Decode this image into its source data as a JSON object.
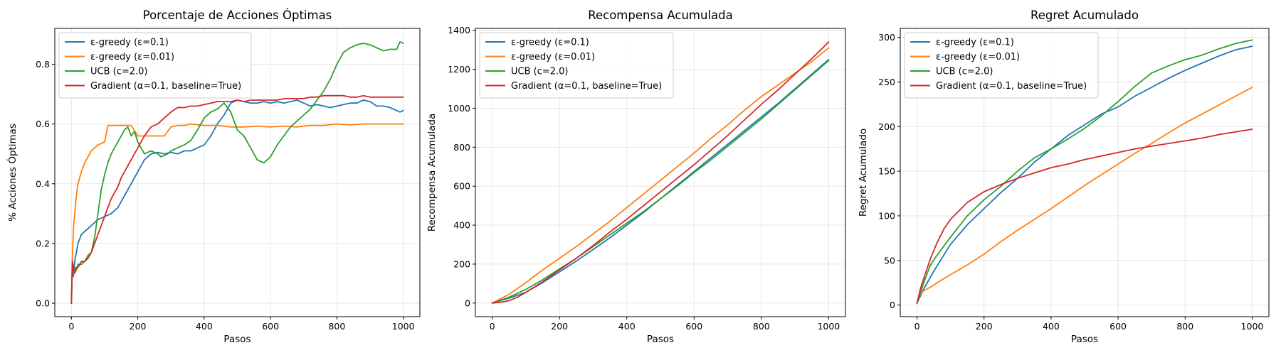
{
  "figure": {
    "colors": {
      "eps01": "#1f77b4",
      "eps001": "#ff7f0e",
      "ucb": "#2ca02c",
      "grad": "#d62728",
      "grid": "#e6e6e6",
      "axis": "#000000"
    }
  },
  "chart_data": [
    {
      "type": "line",
      "title": "Porcentaje de Acciones Óptimas",
      "xlabel": "Pasos",
      "ylabel": "% Acciones Óptimas",
      "xlim": [
        -50,
        1050
      ],
      "ylim": [
        -0.045,
        0.92
      ],
      "xticks": [
        0,
        200,
        400,
        600,
        800,
        1000
      ],
      "yticks": [
        0.0,
        0.2,
        0.4,
        0.6,
        0.8
      ],
      "ytick_labels": [
        "0.0",
        "0.2",
        "0.4",
        "0.6",
        "0.8"
      ],
      "grid": true,
      "legend": "top-left",
      "series": [
        {
          "name": "ε-greedy (ε=0.1)",
          "color_key": "eps01",
          "x": [
            0,
            3,
            6,
            10,
            15,
            20,
            30,
            40,
            50,
            60,
            80,
            100,
            120,
            140,
            160,
            180,
            200,
            220,
            240,
            260,
            280,
            300,
            320,
            340,
            360,
            380,
            400,
            420,
            440,
            460,
            480,
            500,
            520,
            540,
            560,
            580,
            600,
            620,
            640,
            660,
            680,
            700,
            720,
            740,
            760,
            780,
            800,
            820,
            840,
            860,
            880,
            900,
            920,
            940,
            960,
            980,
            990,
            1000
          ],
          "y": [
            0.0,
            0.12,
            0.09,
            0.14,
            0.17,
            0.2,
            0.23,
            0.24,
            0.25,
            0.26,
            0.28,
            0.29,
            0.3,
            0.32,
            0.36,
            0.4,
            0.44,
            0.48,
            0.5,
            0.505,
            0.5,
            0.505,
            0.5,
            0.51,
            0.51,
            0.52,
            0.53,
            0.56,
            0.6,
            0.63,
            0.67,
            0.68,
            0.675,
            0.67,
            0.67,
            0.675,
            0.67,
            0.675,
            0.67,
            0.675,
            0.68,
            0.67,
            0.66,
            0.665,
            0.66,
            0.655,
            0.66,
            0.665,
            0.67,
            0.67,
            0.68,
            0.675,
            0.66,
            0.66,
            0.655,
            0.645,
            0.64,
            0.645
          ]
        },
        {
          "name": "ε-greedy (ε=0.01)",
          "color_key": "eps001",
          "x": [
            0,
            3,
            6,
            10,
            15,
            20,
            30,
            40,
            50,
            60,
            70,
            80,
            90,
            100,
            110,
            120,
            140,
            160,
            180,
            200,
            220,
            240,
            260,
            280,
            300,
            320,
            340,
            360,
            400,
            440,
            480,
            520,
            560,
            600,
            640,
            680,
            720,
            760,
            800,
            840,
            880,
            920,
            960,
            1000
          ],
          "y": [
            0.0,
            0.15,
            0.25,
            0.3,
            0.36,
            0.4,
            0.44,
            0.47,
            0.49,
            0.51,
            0.52,
            0.53,
            0.535,
            0.54,
            0.595,
            0.595,
            0.595,
            0.595,
            0.595,
            0.56,
            0.56,
            0.56,
            0.56,
            0.56,
            0.59,
            0.595,
            0.595,
            0.6,
            0.595,
            0.595,
            0.59,
            0.59,
            0.593,
            0.59,
            0.593,
            0.59,
            0.595,
            0.595,
            0.6,
            0.597,
            0.6,
            0.6,
            0.6,
            0.6
          ]
        },
        {
          "name": "UCB (c=2.0)",
          "color_key": "ucb",
          "x": [
            0,
            3,
            6,
            10,
            15,
            20,
            30,
            40,
            50,
            60,
            70,
            80,
            90,
            100,
            110,
            120,
            130,
            140,
            150,
            160,
            170,
            180,
            190,
            200,
            210,
            220,
            230,
            240,
            250,
            260,
            270,
            280,
            290,
            300,
            320,
            340,
            360,
            380,
            400,
            420,
            440,
            460,
            480,
            500,
            520,
            540,
            560,
            580,
            600,
            620,
            640,
            660,
            680,
            700,
            720,
            740,
            760,
            780,
            800,
            820,
            840,
            860,
            880,
            900,
            920,
            940,
            960,
            980,
            990,
            1000
          ],
          "y": [
            0.0,
            0.13,
            0.1,
            0.12,
            0.11,
            0.13,
            0.13,
            0.14,
            0.16,
            0.17,
            0.22,
            0.3,
            0.38,
            0.43,
            0.47,
            0.5,
            0.52,
            0.54,
            0.56,
            0.58,
            0.59,
            0.56,
            0.575,
            0.54,
            0.52,
            0.5,
            0.505,
            0.51,
            0.505,
            0.5,
            0.49,
            0.495,
            0.5,
            0.51,
            0.52,
            0.53,
            0.545,
            0.58,
            0.62,
            0.64,
            0.65,
            0.67,
            0.64,
            0.58,
            0.56,
            0.52,
            0.48,
            0.47,
            0.49,
            0.53,
            0.56,
            0.59,
            0.61,
            0.63,
            0.65,
            0.68,
            0.71,
            0.75,
            0.8,
            0.84,
            0.855,
            0.865,
            0.87,
            0.865,
            0.855,
            0.845,
            0.85,
            0.85,
            0.875,
            0.87
          ]
        },
        {
          "name": "Gradient (α=0.1, baseline=True)",
          "color_key": "grad",
          "x": [
            0,
            3,
            6,
            10,
            15,
            20,
            30,
            40,
            50,
            60,
            70,
            80,
            90,
            100,
            110,
            120,
            130,
            140,
            150,
            160,
            170,
            180,
            190,
            200,
            220,
            240,
            260,
            280,
            300,
            320,
            340,
            360,
            380,
            400,
            420,
            440,
            460,
            480,
            500,
            520,
            540,
            560,
            580,
            600,
            620,
            640,
            660,
            680,
            700,
            720,
            740,
            760,
            780,
            800,
            820,
            840,
            860,
            880,
            900,
            920,
            940,
            960,
            980,
            1000
          ],
          "y": [
            0.0,
            0.14,
            0.12,
            0.1,
            0.12,
            0.12,
            0.14,
            0.14,
            0.15,
            0.17,
            0.2,
            0.23,
            0.26,
            0.29,
            0.32,
            0.35,
            0.37,
            0.39,
            0.42,
            0.44,
            0.46,
            0.48,
            0.5,
            0.52,
            0.56,
            0.59,
            0.6,
            0.62,
            0.64,
            0.655,
            0.655,
            0.66,
            0.66,
            0.665,
            0.67,
            0.675,
            0.675,
            0.675,
            0.68,
            0.675,
            0.68,
            0.68,
            0.68,
            0.68,
            0.68,
            0.685,
            0.685,
            0.685,
            0.685,
            0.69,
            0.69,
            0.695,
            0.695,
            0.695,
            0.695,
            0.69,
            0.69,
            0.695,
            0.69,
            0.69,
            0.69,
            0.69,
            0.69,
            0.69
          ]
        }
      ]
    },
    {
      "type": "line",
      "title": "Recompensa Acumulada",
      "xlabel": "Pasos",
      "ylabel": "Recompensa Acumulada",
      "xlim": [
        -50,
        1050
      ],
      "ylim": [
        -70,
        1410
      ],
      "xticks": [
        0,
        200,
        400,
        600,
        800,
        1000
      ],
      "yticks": [
        0,
        200,
        400,
        600,
        800,
        1000,
        1200,
        1400
      ],
      "ytick_labels": [
        "0",
        "200",
        "400",
        "600",
        "800",
        "1000",
        "1200",
        "1400"
      ],
      "grid": true,
      "legend": "top-left",
      "series": [
        {
          "name": "ε-greedy (ε=0.1)",
          "color_key": "eps01",
          "x": [
            0,
            50,
            100,
            150,
            200,
            250,
            300,
            350,
            400,
            450,
            500,
            550,
            600,
            650,
            700,
            750,
            800,
            850,
            900,
            950,
            1000
          ],
          "y": [
            0,
            25,
            55,
            105,
            160,
            215,
            275,
            335,
            400,
            465,
            535,
            605,
            675,
            745,
            815,
            885,
            955,
            1025,
            1100,
            1175,
            1250
          ]
        },
        {
          "name": "ε-greedy (ε=0.01)",
          "color_key": "eps001",
          "x": [
            0,
            50,
            100,
            150,
            200,
            250,
            300,
            350,
            400,
            450,
            500,
            550,
            600,
            650,
            700,
            750,
            800,
            850,
            900,
            950,
            1000
          ],
          "y": [
            0,
            45,
            105,
            170,
            230,
            290,
            355,
            420,
            490,
            560,
            630,
            700,
            770,
            845,
            915,
            990,
            1060,
            1120,
            1180,
            1240,
            1310
          ]
        },
        {
          "name": "UCB (c=2.0)",
          "color_key": "ucb",
          "x": [
            0,
            50,
            100,
            150,
            200,
            250,
            300,
            350,
            400,
            450,
            500,
            550,
            600,
            650,
            700,
            750,
            800,
            850,
            900,
            950,
            1000
          ],
          "y": [
            0,
            30,
            70,
            120,
            175,
            230,
            290,
            350,
            410,
            470,
            535,
            600,
            670,
            735,
            805,
            875,
            945,
            1020,
            1095,
            1170,
            1245
          ]
        },
        {
          "name": "Gradient (α=0.1, baseline=True)",
          "color_key": "grad",
          "x": [
            0,
            25,
            50,
            75,
            100,
            150,
            200,
            250,
            300,
            350,
            400,
            450,
            500,
            550,
            600,
            650,
            700,
            750,
            800,
            850,
            900,
            950,
            1000
          ],
          "y": [
            0,
            4,
            12,
            30,
            55,
            110,
            170,
            230,
            295,
            365,
            430,
            500,
            570,
            640,
            710,
            785,
            860,
            940,
            1020,
            1095,
            1175,
            1255,
            1340
          ]
        }
      ]
    },
    {
      "type": "line",
      "title": "Regret Acumulado",
      "xlabel": "Pasos",
      "ylabel": "Regret Acumulado",
      "xlim": [
        -50,
        1050
      ],
      "ylim": [
        -13,
        310
      ],
      "xticks": [
        0,
        200,
        400,
        600,
        800,
        1000
      ],
      "yticks": [
        0,
        50,
        100,
        150,
        200,
        250,
        300
      ],
      "ytick_labels": [
        "0",
        "50",
        "100",
        "150",
        "200",
        "250",
        "300"
      ],
      "grid": true,
      "legend": "top-left",
      "series": [
        {
          "name": "ε-greedy (ε=0.1)",
          "color_key": "eps01",
          "x": [
            0,
            20,
            50,
            80,
            100,
            150,
            200,
            250,
            300,
            350,
            400,
            450,
            500,
            550,
            600,
            650,
            700,
            750,
            800,
            850,
            900,
            950,
            1000
          ],
          "y": [
            2,
            18,
            38,
            56,
            68,
            90,
            108,
            126,
            142,
            160,
            175,
            190,
            202,
            214,
            222,
            234,
            244,
            254,
            263,
            271,
            279,
            286,
            290
          ]
        },
        {
          "name": "ε-greedy (ε=0.01)",
          "color_key": "eps001",
          "x": [
            0,
            10,
            20,
            40,
            60,
            100,
            150,
            200,
            250,
            300,
            350,
            400,
            450,
            500,
            550,
            600,
            650,
            700,
            750,
            800,
            850,
            900,
            950,
            1000
          ],
          "y": [
            2,
            12,
            16,
            20,
            25,
            34,
            45,
            57,
            71,
            84,
            96,
            108,
            121,
            134,
            146,
            158,
            170,
            181,
            193,
            204,
            214,
            224,
            234,
            244
          ]
        },
        {
          "name": "UCB (c=2.0)",
          "color_key": "ucb",
          "x": [
            0,
            20,
            40,
            60,
            80,
            100,
            150,
            200,
            250,
            300,
            350,
            400,
            450,
            500,
            550,
            600,
            650,
            700,
            750,
            800,
            850,
            900,
            950,
            1000
          ],
          "y": [
            2,
            25,
            45,
            56,
            66,
            76,
            100,
            118,
            133,
            150,
            165,
            175,
            186,
            198,
            212,
            228,
            245,
            260,
            268,
            275,
            280,
            287,
            293,
            297
          ]
        },
        {
          "name": "Gradient (α=0.1, baseline=True)",
          "color_key": "grad",
          "x": [
            0,
            10,
            20,
            40,
            60,
            80,
            100,
            150,
            200,
            250,
            300,
            350,
            400,
            450,
            500,
            550,
            600,
            650,
            700,
            750,
            800,
            850,
            900,
            950,
            1000
          ],
          "y": [
            2,
            18,
            30,
            52,
            70,
            85,
            96,
            115,
            127,
            135,
            142,
            148,
            154,
            158,
            163,
            167,
            171,
            175,
            178,
            181,
            184,
            187,
            191,
            194,
            197
          ]
        }
      ]
    }
  ]
}
